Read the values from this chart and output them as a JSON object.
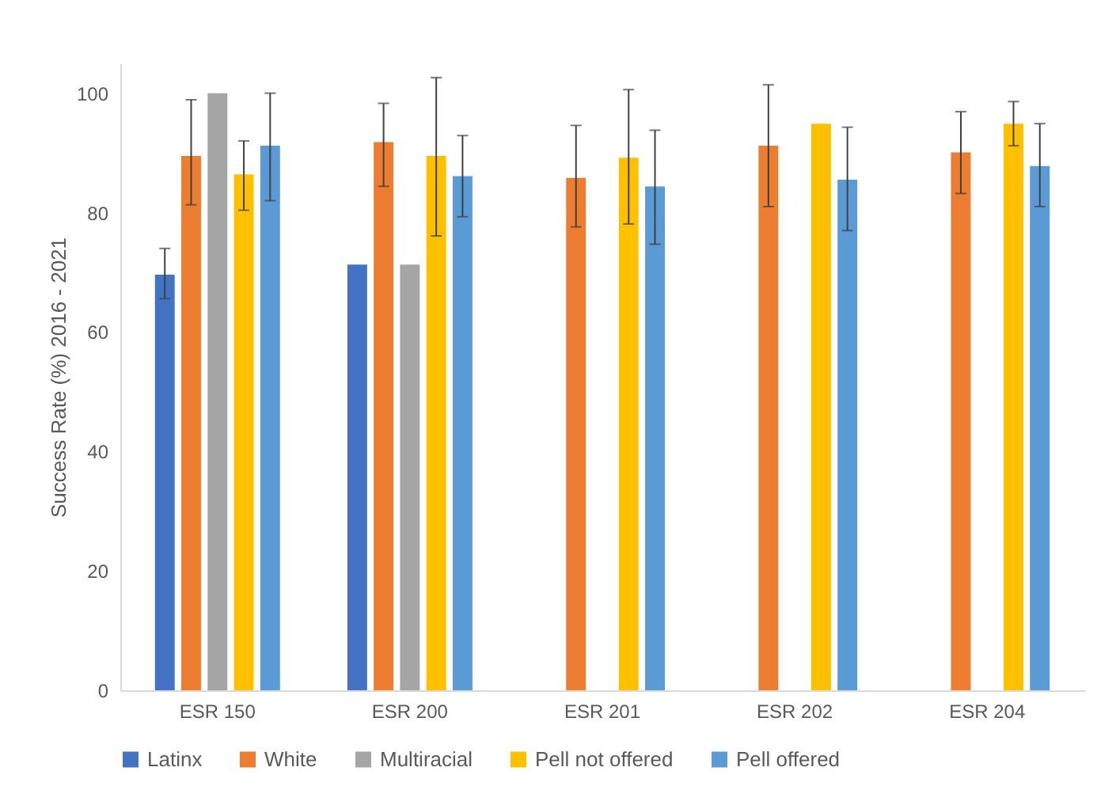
{
  "chart_data": {
    "type": "bar",
    "ylabel": "Success Rate (%) 2016 - 2021",
    "categories": [
      "ESR 150",
      "ESR 200",
      "ESR 201",
      "ESR 202",
      "ESR 204"
    ],
    "ylim": [
      0,
      105
    ],
    "yticks": [
      0,
      20,
      40,
      60,
      80,
      100
    ],
    "grid": false,
    "legend": "bottom",
    "series": [
      {
        "name": "Latinx",
        "color": "#4472c4",
        "values": [
          69.6,
          71.3,
          null,
          null,
          null
        ],
        "errors": [
          [
            65.6,
            74
          ],
          null,
          null,
          null,
          null
        ]
      },
      {
        "name": "White",
        "color": "#ed7d31",
        "values": [
          89.5,
          91.8,
          85.8,
          91.2,
          90.1
        ],
        "errors": [
          [
            81.3,
            98.9
          ],
          [
            84.4,
            98.3
          ],
          [
            77.6,
            94.6
          ],
          [
            81,
            101.4
          ],
          [
            83.2,
            96.9
          ]
        ]
      },
      {
        "name": "Multiracial",
        "color": "#a5a5a5",
        "values": [
          100,
          71.3,
          null,
          null,
          null
        ],
        "errors": [
          null,
          null,
          null,
          null,
          null
        ]
      },
      {
        "name": "Pell not offered",
        "color": "#ffc000",
        "values": [
          86.4,
          89.5,
          89.2,
          94.9,
          94.9
        ],
        "errors": [
          [
            80.4,
            92
          ],
          [
            76.1,
            102.6
          ],
          [
            78.1,
            100.6
          ],
          null,
          [
            91.2,
            98.6
          ]
        ]
      },
      {
        "name": "Pell offered",
        "color": "#5b9bd5",
        "values": [
          91.2,
          86.1,
          84.4,
          85.5,
          87.8
        ],
        "errors": [
          [
            82,
            100
          ],
          [
            79.3,
            92.9
          ],
          [
            74.7,
            93.8
          ],
          [
            77,
            94.3
          ],
          [
            81,
            94.9
          ]
        ]
      }
    ]
  }
}
